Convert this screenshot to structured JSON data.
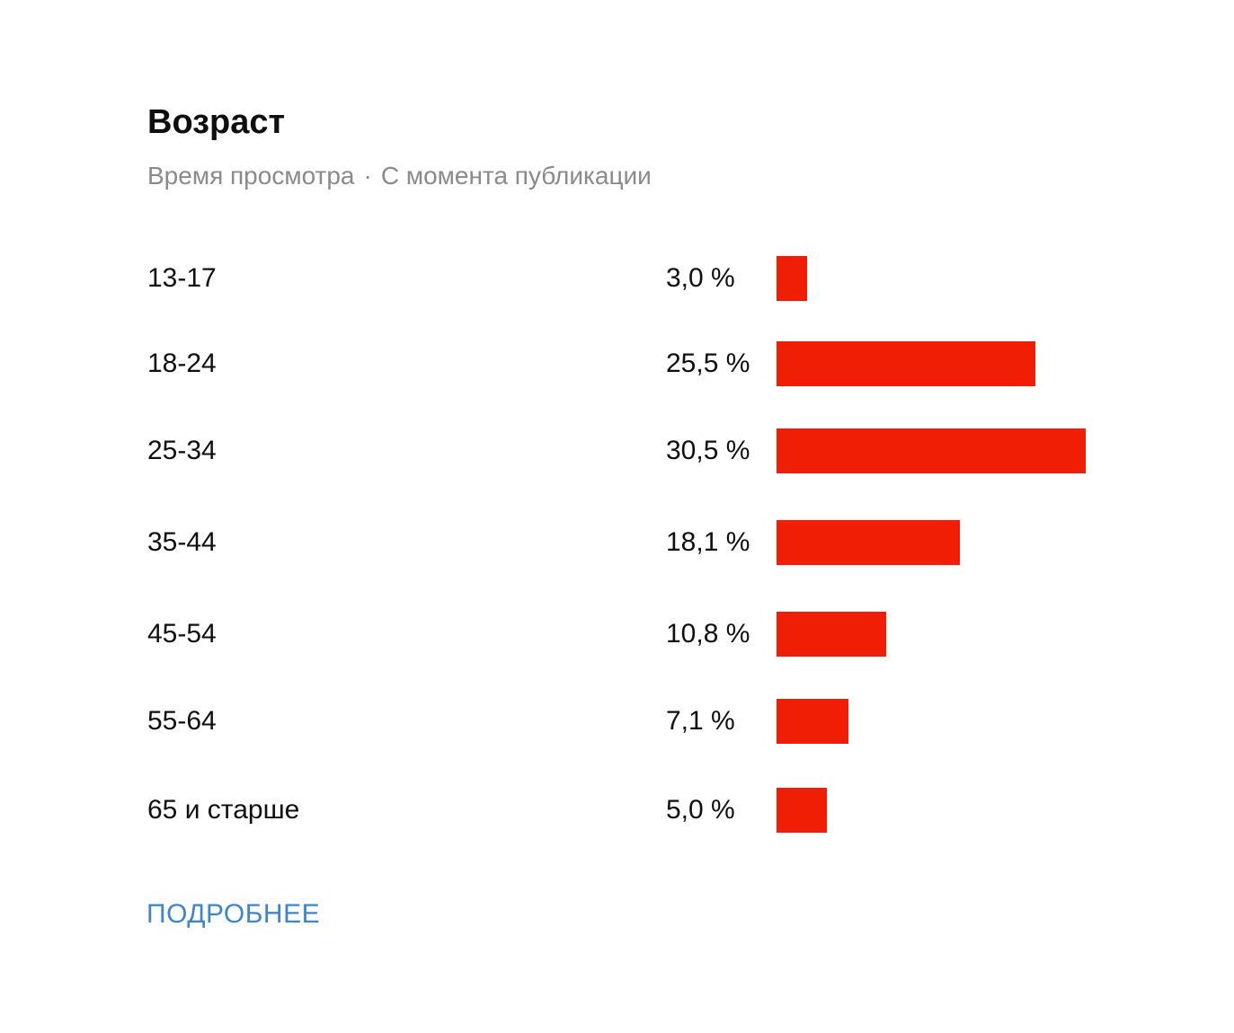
{
  "header": {
    "title": "Возраст",
    "subtitle_metric": "Время просмотра",
    "subtitle_separator": "·",
    "subtitle_period": "С момента публикации"
  },
  "chart_data": {
    "type": "bar",
    "orientation": "horizontal",
    "title": "Возраст",
    "bar_color": "#f01e05",
    "max_value": 30.5,
    "categories": [
      "13-17",
      "18-24",
      "25-34",
      "35-44",
      "45-54",
      "55-64",
      "65 и старше"
    ],
    "values": [
      3.0,
      25.5,
      30.5,
      18.1,
      10.8,
      7.1,
      5.0
    ],
    "value_labels": [
      "3,0 %",
      "25,5 %",
      "30,5 %",
      "18,1 %",
      "10,8 %",
      "7,1 %",
      "5,0 %"
    ]
  },
  "footer": {
    "more_label": "ПОДРОБНЕЕ",
    "link_color": "#3f86c8"
  }
}
